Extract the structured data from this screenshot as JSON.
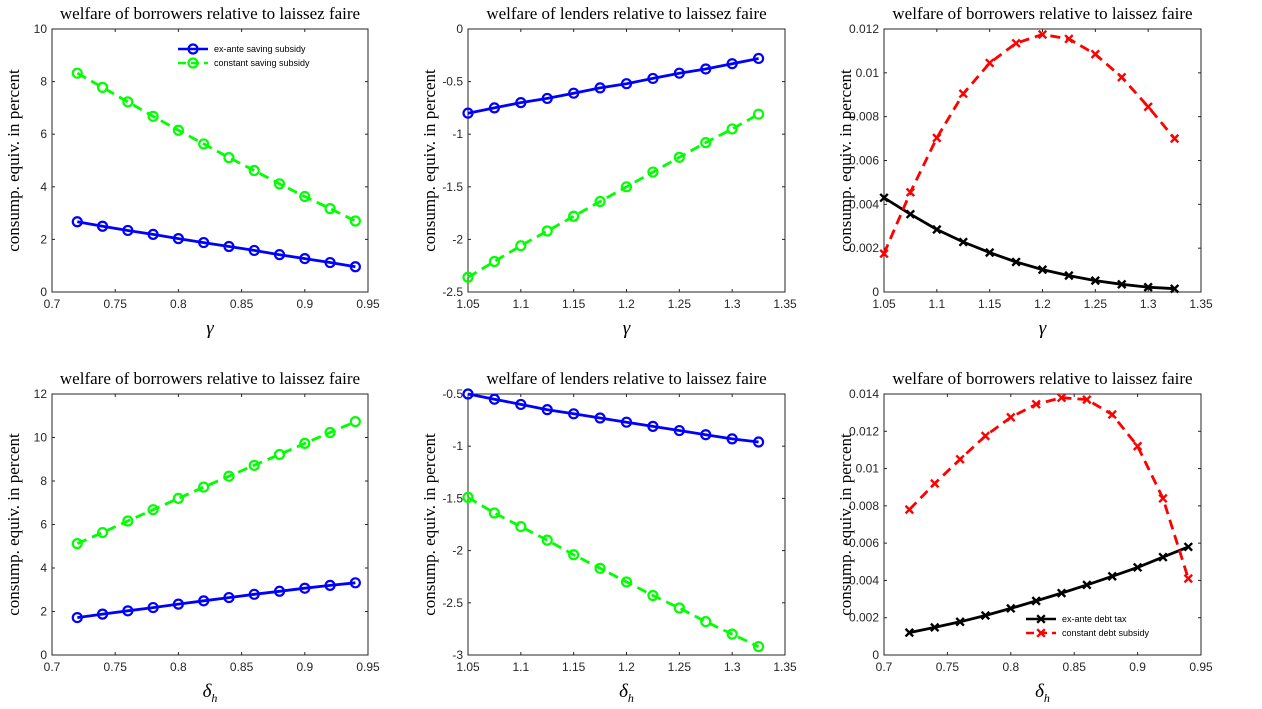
{
  "chart_data": [
    {
      "type": "line",
      "title": "welfare of borrowers relative to laissez faire",
      "xlabel": "γ",
      "ylabel": "consump. equiv. in percent",
      "xlim": [
        0.7,
        0.95
      ],
      "ylim": [
        0,
        10
      ],
      "xticks": [
        "0.7",
        "0.75",
        "0.8",
        "0.85",
        "0.9",
        "0.95"
      ],
      "yticks": [
        "0",
        "2",
        "4",
        "6",
        "8",
        "10"
      ],
      "x": [
        0.72,
        0.74,
        0.76,
        0.78,
        0.8,
        0.82,
        0.84,
        0.86,
        0.88,
        0.9,
        0.92,
        0.94
      ],
      "legend": "top-right",
      "series": [
        {
          "name": "ex-ante saving subsidy",
          "color": "#0000ff",
          "style": "solid",
          "marker": "circle",
          "values": [
            2.67,
            2.5,
            2.34,
            2.19,
            2.03,
            1.88,
            1.73,
            1.58,
            1.42,
            1.27,
            1.12,
            0.96
          ]
        },
        {
          "name": "constant saving subsidy",
          "color": "#00ff00",
          "style": "dashed",
          "marker": "circle",
          "values": [
            8.32,
            7.78,
            7.23,
            6.68,
            6.15,
            5.63,
            5.11,
            4.62,
            4.11,
            3.63,
            3.17,
            2.7
          ]
        }
      ]
    },
    {
      "type": "line",
      "title": "welfare of lenders relative to laissez faire",
      "xlabel": "γ",
      "ylabel": "consump. equiv. in percent",
      "xlim": [
        1.05,
        1.35
      ],
      "ylim": [
        -2.5,
        0
      ],
      "xticks": [
        "1.05",
        "1.1",
        "1.15",
        "1.2",
        "1.25",
        "1.3",
        "1.35"
      ],
      "yticks": [
        "-2.5",
        "-2",
        "-1.5",
        "-1",
        "-0.5",
        "0"
      ],
      "x": [
        1.05,
        1.075,
        1.1,
        1.125,
        1.15,
        1.175,
        1.2,
        1.225,
        1.25,
        1.275,
        1.3,
        1.325
      ],
      "series": [
        {
          "color": "#0000ff",
          "style": "solid",
          "marker": "circle",
          "values": [
            -0.8,
            -0.75,
            -0.7,
            -0.66,
            -0.61,
            -0.56,
            -0.52,
            -0.47,
            -0.42,
            -0.38,
            -0.33,
            -0.28
          ]
        },
        {
          "color": "#00ff00",
          "style": "dashed",
          "marker": "circle",
          "values": [
            -2.36,
            -2.21,
            -2.06,
            -1.92,
            -1.78,
            -1.64,
            -1.5,
            -1.36,
            -1.22,
            -1.08,
            -0.95,
            -0.81
          ]
        }
      ]
    },
    {
      "type": "line",
      "title": "welfare of borrowers relative to laissez faire",
      "xlabel": "γ",
      "ylabel": "consump. equiv. in percent",
      "xlim": [
        1.05,
        1.35
      ],
      "ylim": [
        0,
        0.012
      ],
      "xticks": [
        "1.05",
        "1.1",
        "1.15",
        "1.2",
        "1.25",
        "1.3",
        "1.35"
      ],
      "yticks": [
        "0",
        "0.002",
        "0.004",
        "0.006",
        "0.008",
        "0.01",
        "0.012"
      ],
      "x": [
        1.05,
        1.075,
        1.1,
        1.125,
        1.15,
        1.175,
        1.2,
        1.225,
        1.25,
        1.275,
        1.3,
        1.325
      ],
      "series": [
        {
          "color": "#000000",
          "style": "solid",
          "marker": "x",
          "values": [
            0.0043,
            0.00355,
            0.00285,
            0.00228,
            0.0018,
            0.00137,
            0.00102,
            0.00075,
            0.00052,
            0.00035,
            0.00022,
            0.00015
          ]
        },
        {
          "color": "#ff0000",
          "style": "dashed",
          "marker": "x",
          "values": [
            0.00175,
            0.00455,
            0.00703,
            0.00905,
            0.01045,
            0.01135,
            0.01175,
            0.01155,
            0.01085,
            0.0098,
            0.00845,
            0.007
          ]
        }
      ]
    },
    {
      "type": "line",
      "title": "welfare of borrowers relative to laissez faire",
      "xlabel": "δ_h",
      "ylabel": "consump. equiv. in percent",
      "xlim": [
        0.7,
        0.95
      ],
      "ylim": [
        0,
        12
      ],
      "xticks": [
        "0.7",
        "0.75",
        "0.8",
        "0.85",
        "0.9",
        "0.95"
      ],
      "yticks": [
        "0",
        "2",
        "4",
        "6",
        "8",
        "10",
        "12"
      ],
      "x": [
        0.72,
        0.74,
        0.76,
        0.78,
        0.8,
        0.82,
        0.84,
        0.86,
        0.88,
        0.9,
        0.92,
        0.94
      ],
      "series": [
        {
          "color": "#0000ff",
          "style": "solid",
          "marker": "circle",
          "values": [
            1.72,
            1.88,
            2.03,
            2.18,
            2.34,
            2.49,
            2.64,
            2.79,
            2.93,
            3.07,
            3.2,
            3.32
          ]
        },
        {
          "color": "#00ff00",
          "style": "dashed",
          "marker": "circle",
          "values": [
            5.12,
            5.63,
            6.16,
            6.68,
            7.2,
            7.72,
            8.22,
            8.72,
            9.22,
            9.73,
            10.23,
            10.73
          ]
        }
      ]
    },
    {
      "type": "line",
      "title": "welfare of lenders relative to laissez faire",
      "xlabel": "δ_h",
      "ylabel": "consump. equiv. in percent",
      "xlim": [
        1.05,
        1.35
      ],
      "ylim": [
        -3,
        -0.5
      ],
      "xticks": [
        "1.05",
        "1.1",
        "1.15",
        "1.2",
        "1.25",
        "1.3",
        "1.35"
      ],
      "yticks": [
        "-3",
        "-2.5",
        "-2",
        "-1.5",
        "-1",
        "-0.5"
      ],
      "x": [
        1.05,
        1.075,
        1.1,
        1.125,
        1.15,
        1.175,
        1.2,
        1.225,
        1.25,
        1.275,
        1.3,
        1.325
      ],
      "series": [
        {
          "color": "#0000ff",
          "style": "solid",
          "marker": "circle",
          "values": [
            -0.5,
            -0.55,
            -0.6,
            -0.65,
            -0.69,
            -0.73,
            -0.77,
            -0.81,
            -0.85,
            -0.89,
            -0.93,
            -0.96
          ]
        },
        {
          "color": "#00ff00",
          "style": "dashed",
          "marker": "circle",
          "values": [
            -1.49,
            -1.64,
            -1.77,
            -1.9,
            -2.04,
            -2.17,
            -2.3,
            -2.43,
            -2.55,
            -2.68,
            -2.8,
            -2.92
          ]
        }
      ]
    },
    {
      "type": "line",
      "title": "welfare of borrowers relative to laissez faire",
      "xlabel": "δ_h",
      "ylabel": "consump. equiv. in percent",
      "xlim": [
        0.7,
        0.95
      ],
      "ylim": [
        0,
        0.014
      ],
      "xticks": [
        "0.7",
        "0.75",
        "0.8",
        "0.85",
        "0.9",
        "0.95"
      ],
      "yticks": [
        "0",
        "0.002",
        "0.004",
        "0.006",
        "0.008",
        "0.01",
        "0.012",
        "0.014"
      ],
      "x": [
        0.72,
        0.74,
        0.76,
        0.78,
        0.8,
        0.82,
        0.84,
        0.86,
        0.88,
        0.9,
        0.92,
        0.94
      ],
      "legend": "bottom-right",
      "series": [
        {
          "name": "ex-ante debt tax",
          "color": "#000000",
          "style": "solid",
          "marker": "x",
          "values": [
            0.0012,
            0.00148,
            0.00178,
            0.00212,
            0.0025,
            0.0029,
            0.00332,
            0.00376,
            0.00422,
            0.0047,
            0.00525,
            0.0058
          ]
        },
        {
          "name": "constant debt subsidy",
          "color": "#ff0000",
          "style": "dashed",
          "marker": "x",
          "values": [
            0.0078,
            0.0092,
            0.0105,
            0.01175,
            0.01275,
            0.01345,
            0.0138,
            0.0137,
            0.0129,
            0.0112,
            0.0084,
            0.0041
          ]
        }
      ]
    }
  ]
}
